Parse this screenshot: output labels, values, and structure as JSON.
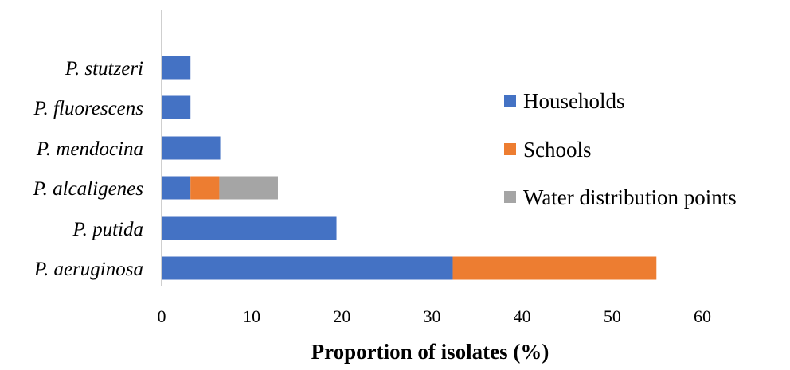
{
  "chart_data": {
    "type": "bar",
    "orientation": "horizontal",
    "stacked": true,
    "categories": [
      "P. aeruginosa",
      "P. putida",
      "P. alcaligenes",
      "P. mendocina",
      "P. fluorescens",
      "P. stutzeri"
    ],
    "series": [
      {
        "name": "Households",
        "color": "#4472C4",
        "values": [
          32.3,
          19.4,
          3.2,
          6.5,
          3.2,
          3.2
        ]
      },
      {
        "name": "Schools",
        "color": "#ED7D31",
        "values": [
          22.6,
          0,
          3.2,
          0,
          0,
          0
        ]
      },
      {
        "name": "Water distribution points",
        "color": "#A5A5A5",
        "values": [
          0,
          0,
          6.5,
          0,
          0,
          0
        ]
      }
    ],
    "xlabel": "Proportion of isolates (%)",
    "ylabel": "",
    "xlim": [
      0,
      60
    ],
    "xticks": [
      0,
      10,
      20,
      30,
      40,
      50,
      60
    ],
    "grid": false,
    "legend_position": "right"
  }
}
